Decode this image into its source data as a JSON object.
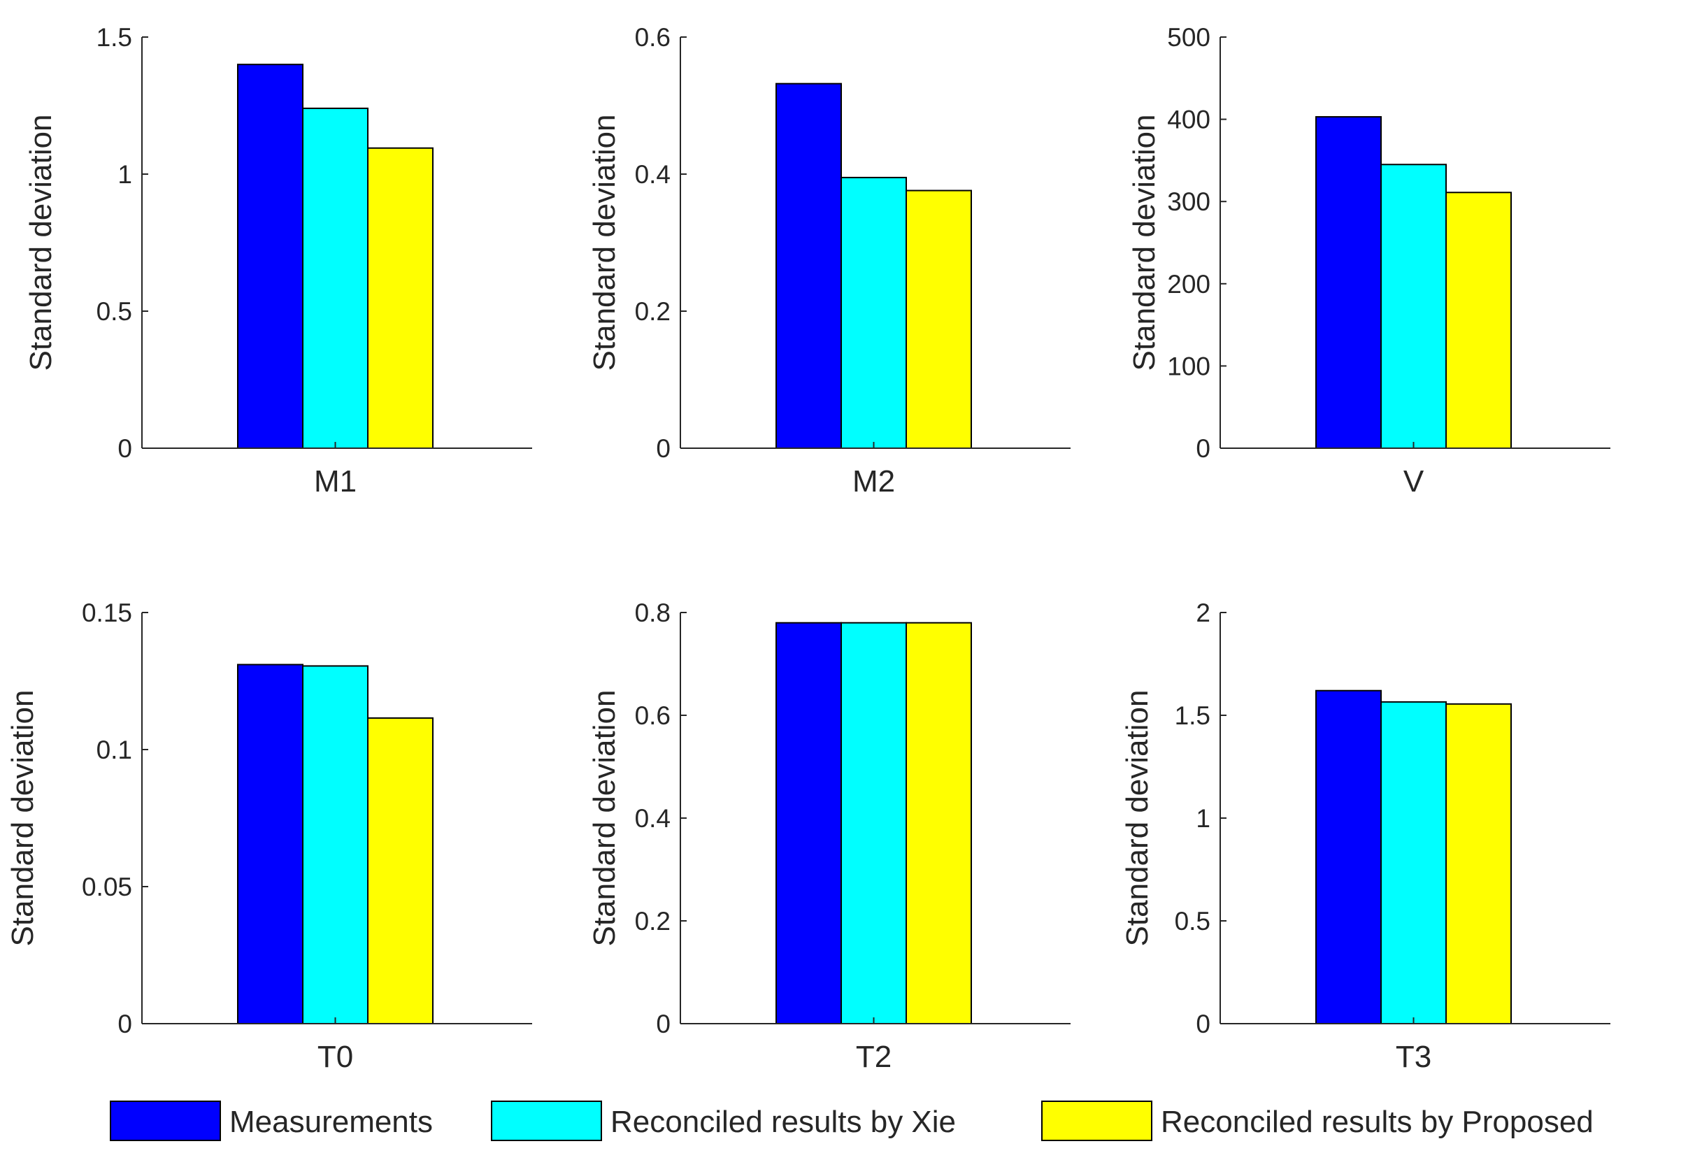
{
  "series": [
    {
      "name": "Measurements",
      "color": "#0000ff"
    },
    {
      "name": "Reconciled results by Xie",
      "color": "#00ffff"
    },
    {
      "name": "Reconciled results by Proposed",
      "color": "#ffff00"
    }
  ],
  "legend": {
    "placement": "bottom",
    "orientation": "horizontal"
  },
  "chart_data": [
    {
      "type": "bar",
      "categories": [
        "M1"
      ],
      "series": [
        {
          "name": "Measurements",
          "values": [
            1.4
          ]
        },
        {
          "name": "Reconciled results by Xie",
          "values": [
            1.24
          ]
        },
        {
          "name": "Reconciled results by Proposed",
          "values": [
            1.095
          ]
        }
      ],
      "ylabel": "Standard deviation",
      "ylim": [
        0,
        1.5
      ],
      "yticks": [
        0,
        0.5,
        1,
        1.5
      ],
      "ytick_labels": [
        "0",
        "0.5",
        "1",
        "1.5"
      ]
    },
    {
      "type": "bar",
      "categories": [
        "M2"
      ],
      "series": [
        {
          "name": "Measurements",
          "values": [
            0.532
          ]
        },
        {
          "name": "Reconciled results by Xie",
          "values": [
            0.395
          ]
        },
        {
          "name": "Reconciled results by Proposed",
          "values": [
            0.376
          ]
        }
      ],
      "ylabel": "Standard deviation",
      "ylim": [
        0,
        0.6
      ],
      "yticks": [
        0,
        0.2,
        0.4,
        0.6
      ],
      "ytick_labels": [
        "0",
        "0.2",
        "0.4",
        "0.6"
      ]
    },
    {
      "type": "bar",
      "categories": [
        "V"
      ],
      "series": [
        {
          "name": "Measurements",
          "values": [
            403
          ]
        },
        {
          "name": "Reconciled results by Xie",
          "values": [
            345
          ]
        },
        {
          "name": "Reconciled results by Proposed",
          "values": [
            311
          ]
        }
      ],
      "ylabel": "Standard deviation",
      "ylim": [
        0,
        500
      ],
      "yticks": [
        0,
        100,
        200,
        300,
        400,
        500
      ],
      "ytick_labels": [
        "0",
        "100",
        "200",
        "300",
        "400",
        "500"
      ]
    },
    {
      "type": "bar",
      "categories": [
        "T0"
      ],
      "series": [
        {
          "name": "Measurements",
          "values": [
            0.131
          ]
        },
        {
          "name": "Reconciled results by Xie",
          "values": [
            0.1305
          ]
        },
        {
          "name": "Reconciled results by Proposed",
          "values": [
            0.1115
          ]
        }
      ],
      "ylabel": "Standard deviation",
      "ylim": [
        0,
        0.15
      ],
      "yticks": [
        0,
        0.05,
        0.1,
        0.15
      ],
      "ytick_labels": [
        "0",
        "0.05",
        "0.1",
        "0.15"
      ]
    },
    {
      "type": "bar",
      "categories": [
        "T2"
      ],
      "series": [
        {
          "name": "Measurements",
          "values": [
            0.78
          ]
        },
        {
          "name": "Reconciled results by Xie",
          "values": [
            0.78
          ]
        },
        {
          "name": "Reconciled results by Proposed",
          "values": [
            0.78
          ]
        }
      ],
      "ylabel": "Standard deviation",
      "ylim": [
        0,
        0.8
      ],
      "yticks": [
        0,
        0.2,
        0.4,
        0.6,
        0.8
      ],
      "ytick_labels": [
        "0",
        "0.2",
        "0.4",
        "0.6",
        "0.8"
      ]
    },
    {
      "type": "bar",
      "categories": [
        "T3"
      ],
      "series": [
        {
          "name": "Measurements",
          "values": [
            1.62
          ]
        },
        {
          "name": "Reconciled results by Xie",
          "values": [
            1.565
          ]
        },
        {
          "name": "Reconciled results by Proposed",
          "values": [
            1.555
          ]
        }
      ],
      "ylabel": "Standard deviation",
      "ylim": [
        0,
        2
      ],
      "yticks": [
        0,
        0.5,
        1,
        1.5,
        2
      ],
      "ytick_labels": [
        "0",
        "0.5",
        "1",
        "1.5",
        "2"
      ]
    }
  ]
}
